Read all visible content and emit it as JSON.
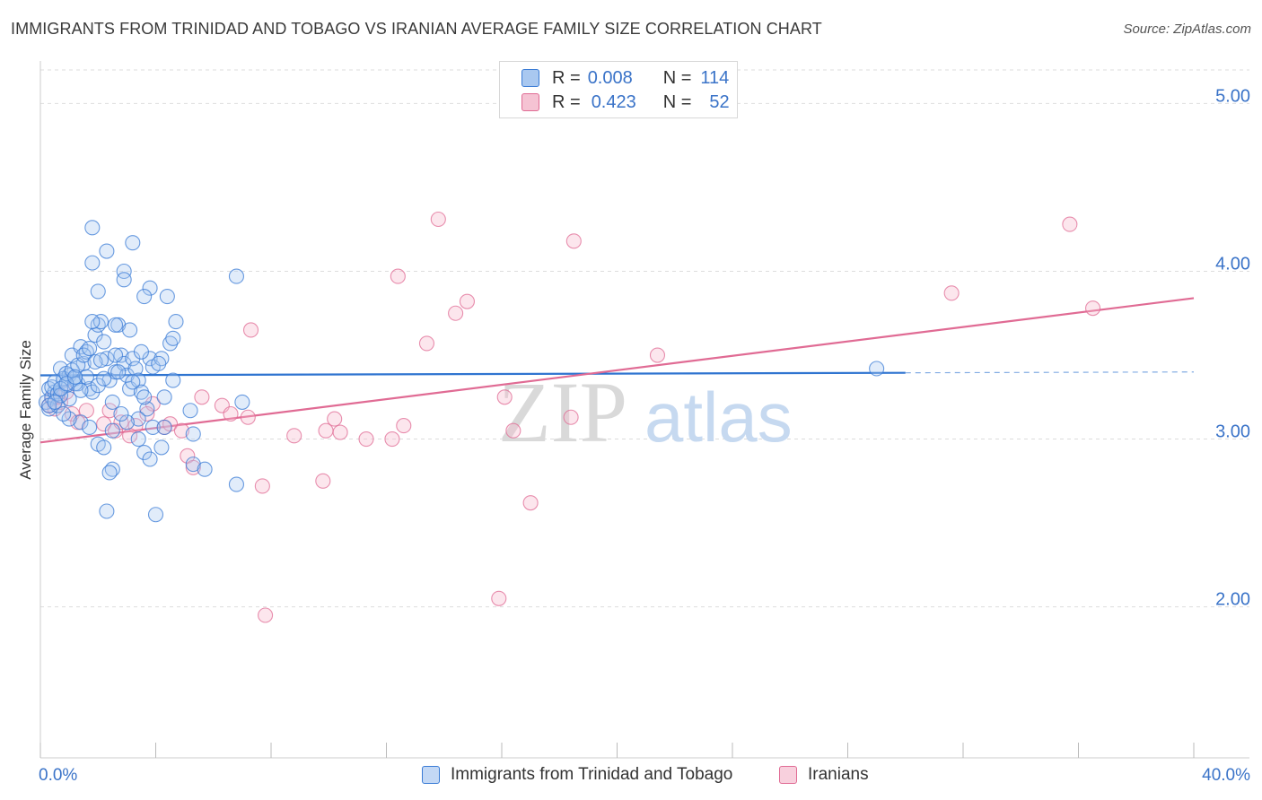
{
  "title": "IMMIGRANTS FROM TRINIDAD AND TOBAGO VS IRANIAN AVERAGE FAMILY SIZE CORRELATION CHART",
  "source": "Source: ZipAtlas.com",
  "watermark": {
    "zip": "ZIP",
    "atlas": "atlas"
  },
  "legend": {
    "r_label": "R =",
    "n_label": "N =",
    "series1": {
      "r": "0.008",
      "n": "114"
    },
    "series2": {
      "r": "0.423",
      "n": "52"
    }
  },
  "bottom_legend": {
    "series1": "Immigrants from Trinidad and Tobago",
    "series2": "Iranians"
  },
  "colors": {
    "blue": "#3a7bd5",
    "blue_fill": "#a9c8f0",
    "pink": "#e06b94",
    "pink_fill": "#f5b8cc",
    "tick_label": "#3a73c8"
  },
  "chart_data": {
    "type": "scatter",
    "title": "IMMIGRANTS FROM TRINIDAD AND TOBAGO VS IRANIAN AVERAGE FAMILY SIZE CORRELATION CHART",
    "xlabel": "",
    "ylabel": "Average Family Size",
    "xlim": [
      0,
      40
    ],
    "ylim": [
      1.1,
      5.2
    ],
    "x_tick_labels": [
      "0.0%",
      "40.0%"
    ],
    "y_ticks": [
      2.0,
      3.0,
      4.0,
      5.0
    ],
    "y_tick_labels": [
      "2.00",
      "3.00",
      "4.00",
      "5.00"
    ],
    "grid": "horizontal dashed",
    "legend_position": "top-center",
    "series": [
      {
        "name": "Immigrants from Trinidad and Tobago",
        "color": "#3a7bd5",
        "trend": {
          "x0": 0.0,
          "y0": 3.38,
          "x1": 30.0,
          "y1": 3.395,
          "dashed_to_x": 40.0
        },
        "points": [
          [
            0.2,
            3.22
          ],
          [
            0.3,
            3.3
          ],
          [
            0.4,
            3.25
          ],
          [
            0.5,
            3.28
          ],
          [
            0.3,
            3.18
          ],
          [
            0.6,
            3.2
          ],
          [
            0.8,
            3.35
          ],
          [
            0.7,
            3.42
          ],
          [
            0.9,
            3.32
          ],
          [
            1.0,
            3.38
          ],
          [
            1.1,
            3.5
          ],
          [
            1.2,
            3.36
          ],
          [
            1.3,
            3.33
          ],
          [
            1.4,
            3.55
          ],
          [
            1.5,
            3.45
          ],
          [
            1.6,
            3.52
          ],
          [
            1.7,
            3.3
          ],
          [
            1.8,
            3.28
          ],
          [
            1.9,
            3.62
          ],
          [
            2.0,
            3.68
          ],
          [
            2.1,
            3.7
          ],
          [
            2.2,
            3.58
          ],
          [
            2.3,
            3.48
          ],
          [
            2.4,
            3.35
          ],
          [
            2.5,
            3.22
          ],
          [
            2.6,
            3.4
          ],
          [
            2.7,
            3.68
          ],
          [
            2.8,
            3.5
          ],
          [
            2.9,
            3.45
          ],
          [
            3.0,
            3.38
          ],
          [
            3.1,
            3.3
          ],
          [
            3.2,
            3.48
          ],
          [
            3.3,
            3.42
          ],
          [
            3.4,
            3.35
          ],
          [
            3.5,
            3.28
          ],
          [
            0.4,
            3.31
          ],
          [
            0.6,
            3.27
          ],
          [
            0.8,
            3.36
          ],
          [
            1.0,
            3.24
          ],
          [
            1.2,
            3.33
          ],
          [
            1.4,
            3.29
          ],
          [
            1.6,
            3.37
          ],
          [
            0.5,
            3.34
          ],
          [
            0.7,
            3.26
          ],
          [
            0.9,
            3.39
          ],
          [
            1.1,
            3.41
          ],
          [
            1.3,
            3.44
          ],
          [
            1.5,
            3.5
          ],
          [
            1.7,
            3.54
          ],
          [
            1.9,
            3.46
          ],
          [
            2.1,
            3.47
          ],
          [
            0.3,
            3.2
          ],
          [
            0.5,
            3.22
          ],
          [
            0.7,
            3.3
          ],
          [
            0.9,
            3.33
          ],
          [
            1.8,
            3.7
          ],
          [
            2.0,
            3.88
          ],
          [
            2.6,
            3.68
          ],
          [
            3.1,
            3.65
          ],
          [
            3.8,
            3.9
          ],
          [
            4.4,
            3.85
          ],
          [
            4.7,
            3.7
          ],
          [
            1.8,
            4.05
          ],
          [
            2.3,
            4.12
          ],
          [
            2.9,
            4.0
          ],
          [
            3.2,
            4.17
          ],
          [
            1.8,
            4.26
          ],
          [
            2.9,
            3.95
          ],
          [
            3.6,
            3.85
          ],
          [
            6.8,
            3.97
          ],
          [
            4.5,
            3.57
          ],
          [
            4.6,
            3.6
          ],
          [
            3.8,
            3.48
          ],
          [
            3.5,
            3.52
          ],
          [
            3.9,
            3.43
          ],
          [
            4.2,
            3.48
          ],
          [
            4.1,
            3.45
          ],
          [
            4.6,
            3.35
          ],
          [
            4.3,
            3.25
          ],
          [
            3.7,
            3.18
          ],
          [
            3.4,
            3.12
          ],
          [
            3.0,
            3.1
          ],
          [
            2.5,
            3.05
          ],
          [
            2.0,
            2.97
          ],
          [
            2.2,
            2.95
          ],
          [
            3.4,
            3.0
          ],
          [
            3.9,
            3.07
          ],
          [
            3.6,
            2.92
          ],
          [
            4.2,
            2.95
          ],
          [
            3.8,
            2.88
          ],
          [
            2.5,
            2.82
          ],
          [
            2.4,
            2.8
          ],
          [
            5.3,
            3.03
          ],
          [
            5.3,
            2.85
          ],
          [
            5.7,
            2.82
          ],
          [
            6.8,
            2.73
          ],
          [
            5.2,
            3.17
          ],
          [
            7.0,
            3.22
          ],
          [
            2.3,
            2.57
          ],
          [
            4.0,
            2.55
          ],
          [
            2.0,
            3.32
          ],
          [
            2.2,
            3.36
          ],
          [
            2.7,
            3.4
          ],
          [
            3.2,
            3.34
          ],
          [
            1.4,
            3.1
          ],
          [
            1.7,
            3.07
          ],
          [
            2.8,
            3.15
          ],
          [
            4.3,
            3.07
          ],
          [
            3.6,
            3.25
          ],
          [
            1.0,
            3.12
          ],
          [
            0.8,
            3.15
          ],
          [
            2.6,
            3.5
          ],
          [
            29.0,
            3.42
          ],
          [
            1.2,
            3.37
          ]
        ]
      },
      {
        "name": "Iranians",
        "color": "#e06b94",
        "trend": {
          "x0": 0.0,
          "y0": 2.98,
          "x1": 40.0,
          "y1": 3.84
        },
        "points": [
          [
            0.3,
            3.2
          ],
          [
            0.5,
            3.18
          ],
          [
            0.7,
            3.22
          ],
          [
            0.9,
            3.28
          ],
          [
            1.1,
            3.15
          ],
          [
            1.3,
            3.1
          ],
          [
            0.6,
            3.25
          ],
          [
            0.4,
            3.24
          ],
          [
            1.6,
            3.17
          ],
          [
            2.2,
            3.09
          ],
          [
            2.6,
            3.05
          ],
          [
            2.8,
            3.1
          ],
          [
            2.4,
            3.17
          ],
          [
            3.3,
            3.08
          ],
          [
            3.9,
            3.21
          ],
          [
            3.7,
            3.15
          ],
          [
            3.1,
            3.02
          ],
          [
            4.3,
            3.07
          ],
          [
            4.5,
            3.09
          ],
          [
            4.9,
            3.05
          ],
          [
            5.1,
            2.9
          ],
          [
            5.3,
            2.83
          ],
          [
            5.6,
            3.25
          ],
          [
            6.3,
            3.2
          ],
          [
            6.6,
            3.15
          ],
          [
            7.2,
            3.13
          ],
          [
            8.8,
            3.02
          ],
          [
            9.9,
            3.05
          ],
          [
            10.4,
            3.04
          ],
          [
            10.2,
            3.12
          ],
          [
            11.3,
            3.0
          ],
          [
            12.2,
            3.0
          ],
          [
            12.6,
            3.08
          ],
          [
            13.4,
            3.57
          ],
          [
            14.4,
            3.75
          ],
          [
            14.8,
            3.82
          ],
          [
            13.8,
            4.31
          ],
          [
            16.1,
            3.25
          ],
          [
            16.4,
            3.05
          ],
          [
            18.4,
            3.13
          ],
          [
            18.5,
            4.18
          ],
          [
            17.0,
            2.62
          ],
          [
            7.7,
            2.72
          ],
          [
            7.3,
            3.65
          ],
          [
            12.4,
            3.97
          ],
          [
            9.8,
            2.75
          ],
          [
            15.9,
            2.05
          ],
          [
            21.4,
            3.5
          ],
          [
            31.6,
            3.87
          ],
          [
            35.7,
            4.28
          ],
          [
            36.5,
            3.78
          ],
          [
            7.8,
            1.95
          ]
        ]
      }
    ]
  }
}
